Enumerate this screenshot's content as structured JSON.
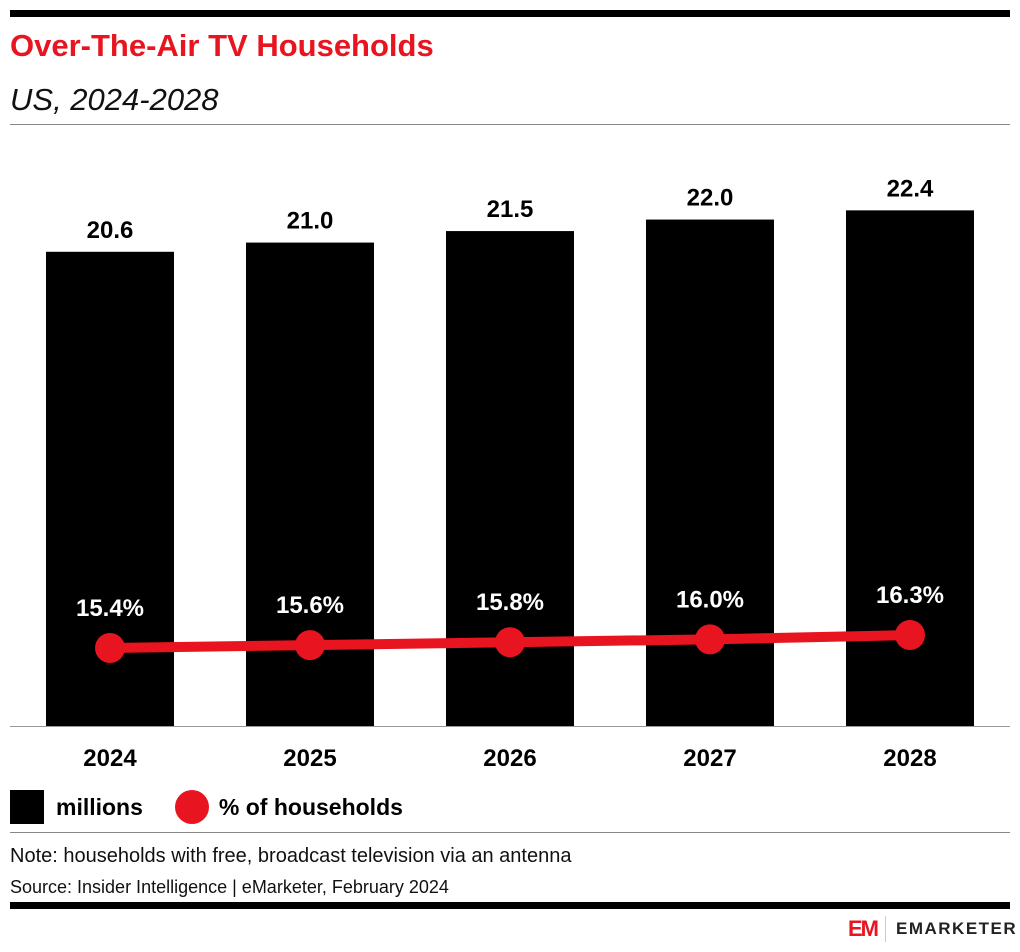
{
  "chart_data": {
    "type": "bar",
    "title": "Over-The-Air TV Households",
    "subtitle": "US, 2024-2028",
    "categories": [
      "2024",
      "2025",
      "2026",
      "2027",
      "2028"
    ],
    "series": [
      {
        "name": "millions",
        "type": "bar",
        "values": [
          20.6,
          21.0,
          21.5,
          22.0,
          22.4
        ],
        "labels": [
          "20.6",
          "21.0",
          "21.5",
          "22.0",
          "22.4"
        ],
        "color": "#000000"
      },
      {
        "name": "% of households",
        "type": "line",
        "values": [
          15.4,
          15.6,
          15.8,
          16.0,
          16.3
        ],
        "labels": [
          "15.4%",
          "15.6%",
          "15.8%",
          "16.0%",
          "16.3%"
        ],
        "color": "#e8141f"
      }
    ],
    "legend_position": "bottom-left",
    "grid": false
  },
  "note": "Note: households with free, broadcast television via an antenna",
  "source": "Source: Insider Intelligence | eMarketer, February 2024",
  "logo": {
    "mark": "EM",
    "text": "EMARKETER"
  },
  "colors": {
    "accent": "#e8141f",
    "bar": "#000000"
  }
}
